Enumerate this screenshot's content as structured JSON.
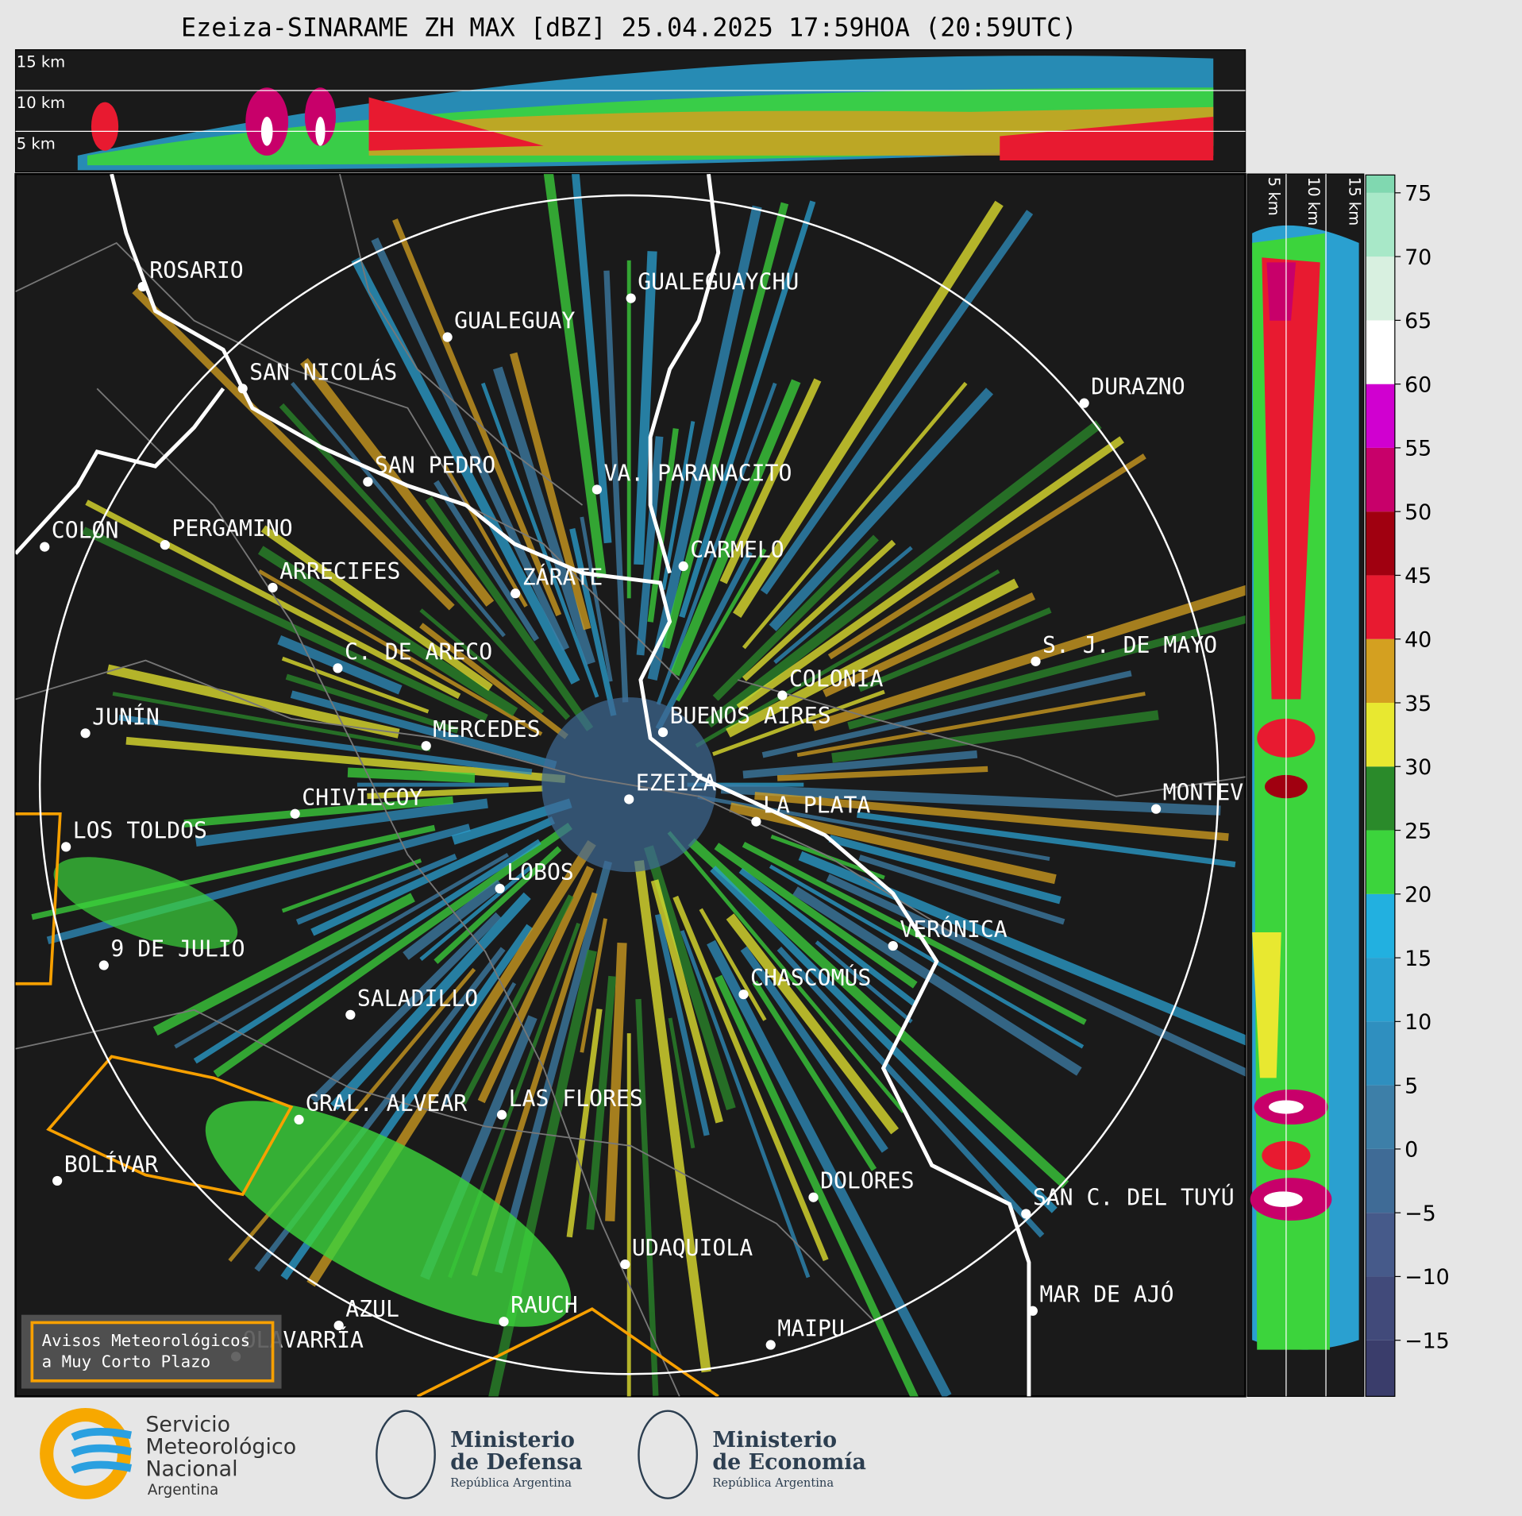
{
  "header": {
    "title": "Ezeiza-SINARAME ZH MAX [dBZ] 25.04.2025 17:59HOA (20:59UTC)"
  },
  "height_labels": [
    "15 km",
    "10 km",
    "5 km"
  ],
  "side_height_labels": [
    "5 km",
    "10 km",
    "15 km"
  ],
  "cities": [
    "ROSARIO",
    "GUALEGUAYCHU",
    "GUALEGUAY",
    "SAN NICOLÁS",
    "DURAZNO",
    "SAN PEDRO",
    "VA. PARANACITO",
    "COLON",
    "PERGAMINO",
    "CARMELO",
    "ARRECIFES",
    "ZÁRATE",
    "S. J. DE MAYO",
    "C. DE ARECO",
    "COLONIA",
    "BUENOS AIRES",
    "JUNÍN",
    "MERCEDES",
    "EZEIZA",
    "CHIVILCOY",
    "MONTEVIDEO",
    "LA PLATA",
    "LOS TOLDOS",
    "LOBOS",
    "VERÓNICA",
    "9 DE JULIO",
    "CHASCOMÚS",
    "SALADILLO",
    "GRAL. ALVEAR",
    "LAS FLORES",
    "BOLÍVAR",
    "DOLORES",
    "SAN C. DEL TUYÚ",
    "UDAQUIOLA",
    "MAR DE AJÓ",
    "AZUL",
    "RAUCH",
    "OLAVARRÍA",
    "MAIPU"
  ],
  "warning_box": [
    "Avisos Meteorológicos",
    "a Muy Corto Plazo"
  ],
  "colorbar": {
    "lim": [
      -19.4,
      76.4
    ],
    "band_start": -20,
    "band_step": 5,
    "colors": [
      "#3a3d6b",
      "#414a7a",
      "#465a8a",
      "#3f6b96",
      "#3d7fa8",
      "#2f8fbf",
      "#2aa0d0",
      "#22b0e0",
      "#3cd43c",
      "#2a8a2a",
      "#e8e830",
      "#d4a020",
      "#e81a30",
      "#a00010",
      "#c8006a",
      "#d000d0",
      "#ffffff",
      "#d8f0e0",
      "#a8e8c8",
      "#80d8b0"
    ],
    "ticks": [
      {
        "value": -15,
        "label": "−15"
      },
      {
        "value": -10,
        "label": "−10"
      },
      {
        "value": -5,
        "label": "−5"
      },
      0,
      5,
      10,
      15,
      20,
      25,
      30,
      35,
      40,
      45,
      50,
      55,
      60,
      65,
      70,
      75
    ]
  },
  "logos": {
    "smn": [
      "Servicio",
      "Meteorológico",
      "Nacional",
      "Argentina"
    ],
    "defensa": [
      "Ministerio",
      "de Defensa",
      "República Argentina"
    ],
    "economia": [
      "Ministerio",
      "de Economía",
      "República Argentina"
    ]
  }
}
